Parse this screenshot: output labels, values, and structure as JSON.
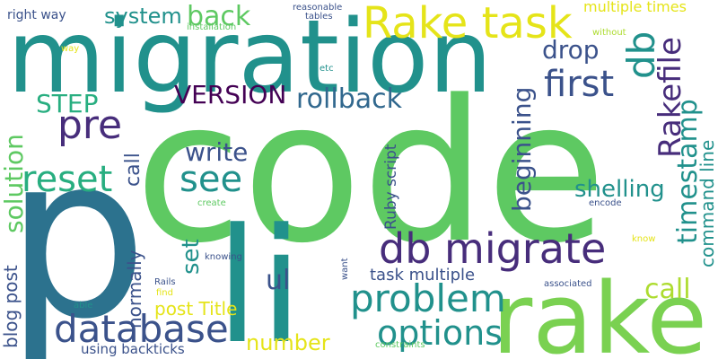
{
  "palette": {
    "green": "#5ec962",
    "teal": "#21918c",
    "blue": "#2c728e",
    "navy": "#3b528b",
    "purple": "#472d7b",
    "lime": "#addc30",
    "yellow": "#e5e419",
    "seafoam": "#28ae80"
  },
  "words": [
    {
      "text": "code",
      "color": "#5ec962"
    },
    {
      "text": "migration",
      "color": "#21918c"
    },
    {
      "text": "p",
      "color": "#2c728e"
    },
    {
      "text": "li",
      "color": "#21918c"
    },
    {
      "text": "rake",
      "color": "#7ad151"
    },
    {
      "text": "Rake task",
      "color": "#e5e419"
    },
    {
      "text": "db migrate",
      "color": "#472d7b"
    },
    {
      "text": "database",
      "color": "#3b528b"
    },
    {
      "text": "problem",
      "color": "#21918c"
    },
    {
      "text": "pre",
      "color": "#472d7b"
    },
    {
      "text": "reset",
      "color": "#28ae80"
    },
    {
      "text": "see",
      "color": "#21918c"
    },
    {
      "text": "first",
      "color": "#3b528b"
    },
    {
      "text": "options",
      "color": "#21918c"
    },
    {
      "text": "rollback",
      "color": "#31688e"
    },
    {
      "text": "VERSION",
      "color": "#440154"
    },
    {
      "text": "write",
      "color": "#3b528b"
    },
    {
      "text": "back",
      "color": "#5ec962"
    },
    {
      "text": "system",
      "color": "#21918c"
    },
    {
      "text": "drop",
      "color": "#3b528b"
    },
    {
      "text": "db",
      "color": "#21918c"
    },
    {
      "text": "Rakefile",
      "color": "#472d7b"
    },
    {
      "text": "timestamp",
      "color": "#21918c"
    },
    {
      "text": "beginning",
      "color": "#3b528b"
    },
    {
      "text": "shelling",
      "color": "#21918c"
    },
    {
      "text": "solution",
      "color": "#5ec962"
    },
    {
      "text": "STEP",
      "color": "#28ae80"
    },
    {
      "text": "call",
      "color": "#addc30"
    },
    {
      "text": "call",
      "color": "#3b528b"
    },
    {
      "text": "set",
      "color": "#21918c"
    },
    {
      "text": "ul",
      "color": "#3b528b"
    },
    {
      "text": "number",
      "color": "#e5e419"
    },
    {
      "text": "post Title",
      "color": "#e5e419"
    },
    {
      "text": "command line",
      "color": "#21918c"
    },
    {
      "text": "normally",
      "color": "#3b528b"
    },
    {
      "text": "blog post",
      "color": "#3b528b"
    },
    {
      "text": "Ruby script",
      "color": "#3b528b"
    },
    {
      "text": "task multiple",
      "color": "#3b528b"
    },
    {
      "text": "right way",
      "color": "#3b528b"
    },
    {
      "text": "multiple times",
      "color": "#e5e419"
    },
    {
      "text": "using backticks",
      "color": "#3b528b"
    },
    {
      "text": "reasonable",
      "color": "#3b528b"
    },
    {
      "text": "tables",
      "color": "#3b528b"
    },
    {
      "text": "installation",
      "color": "#5ec962"
    },
    {
      "text": "without",
      "color": "#addc30"
    },
    {
      "text": "way",
      "color": "#e5e419"
    },
    {
      "text": "etc",
      "color": "#21918c"
    },
    {
      "text": "create",
      "color": "#5ec962"
    },
    {
      "text": "encode",
      "color": "#3b528b"
    },
    {
      "text": "knowing",
      "color": "#3b528b"
    },
    {
      "text": "want",
      "color": "#3b528b"
    },
    {
      "text": "Rails",
      "color": "#3b528b"
    },
    {
      "text": "find",
      "color": "#e5e419"
    },
    {
      "text": "able",
      "color": "#21918c"
    },
    {
      "text": "associated",
      "color": "#3b528b"
    },
    {
      "text": "constraints",
      "color": "#5ec962"
    },
    {
      "text": "know",
      "color": "#e5e419"
    }
  ]
}
